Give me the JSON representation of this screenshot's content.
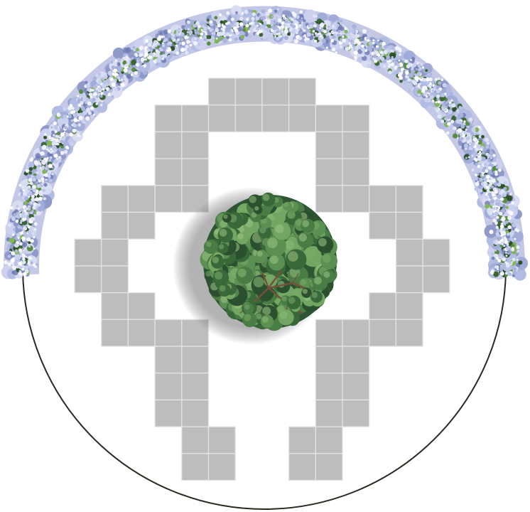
{
  "plan": {
    "background_color": "#ffffff",
    "boundary": {
      "stroke_color": "#2a281f"
    },
    "paving": {
      "icon": "paving-tile-icon",
      "tile_color": "#bdbdbd",
      "joint_color": "#e4e4e4"
    },
    "hedge": {
      "icon": "hydrangea-hedge-icon",
      "base_color": "#c2c8e6",
      "cluster_colors": [
        "#b2bbe1",
        "#a2acd8",
        "#cbd1ee",
        "#8f9aca",
        "#d9ddf2"
      ],
      "leaf_colors": [
        "#3b6832",
        "#5a8b43",
        "#82b55a",
        "#2e5228"
      ],
      "petal_colors": [
        "#f3f4fb",
        "#e1e5f5",
        "#cad1ee",
        "#ffffff",
        "#a9b3de",
        "#bcc4e8"
      ],
      "shade_color": "#6b78b0"
    },
    "tree": {
      "icon": "tree-canopy-icon",
      "canopy_color": "#2f5632",
      "foliage_colors": [
        "#2b5030",
        "#3a6939",
        "#4a7d45",
        "#5c9052",
        "#74a663"
      ],
      "highlight_colors": [
        "#8dbb76",
        "#7aac67",
        "#9cc585"
      ],
      "branch_color": "#77503a",
      "shadow_color": "#6e6e6e"
    }
  }
}
